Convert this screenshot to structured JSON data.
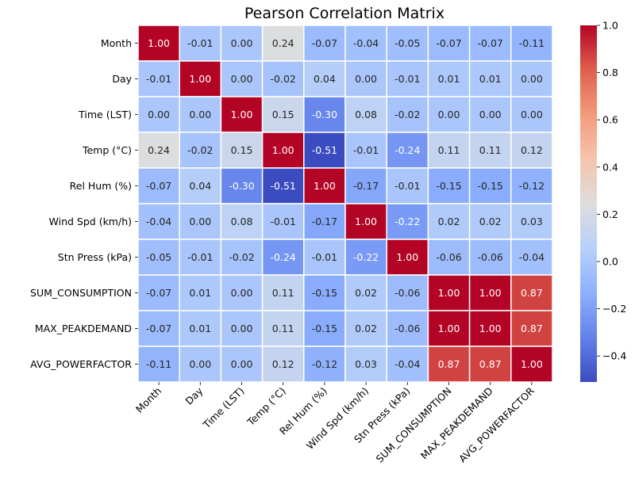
{
  "chart_data": {
    "type": "heatmap",
    "title": "Pearson Correlation Matrix",
    "xlabel": "",
    "ylabel": "",
    "colormap": "coolwarm",
    "annotation_format": "0.00",
    "grid_lines": true,
    "grid_line_color": "#ffffff",
    "x_labels": [
      "Month",
      "Day",
      "Time (LST)",
      "Temp (°C)",
      "Rel Hum (%)",
      "Wind Spd (km/h)",
      "Stn Press (kPa)",
      "SUM_CONSUMPTION",
      "MAX_PEAKDEMAND",
      "AVG_POWERFACTOR"
    ],
    "y_labels": [
      "Month",
      "Day",
      "Time (LST)",
      "Temp (°C)",
      "Rel Hum (%)",
      "Wind Spd (km/h)",
      "Stn Press (kPa)",
      "SUM_CONSUMPTION",
      "MAX_PEAKDEMAND",
      "AVG_POWERFACTOR"
    ],
    "values": [
      [
        1.0,
        -0.01,
        -0.0,
        0.24,
        -0.07,
        -0.04,
        -0.05,
        -0.07,
        -0.07,
        -0.11
      ],
      [
        -0.01,
        1.0,
        0.0,
        -0.02,
        0.04,
        -0.0,
        -0.01,
        0.01,
        0.01,
        0.0
      ],
      [
        -0.0,
        0.0,
        1.0,
        0.15,
        -0.3,
        0.08,
        -0.02,
        0.0,
        -0.0,
        -0.0
      ],
      [
        0.24,
        -0.02,
        0.15,
        1.0,
        -0.51,
        -0.01,
        -0.24,
        0.11,
        0.11,
        0.12
      ],
      [
        -0.07,
        0.04,
        -0.3,
        -0.51,
        1.0,
        -0.17,
        -0.01,
        -0.15,
        -0.15,
        -0.12
      ],
      [
        -0.04,
        -0.0,
        0.08,
        -0.01,
        -0.17,
        1.0,
        -0.22,
        0.02,
        0.02,
        0.03
      ],
      [
        -0.05,
        -0.01,
        -0.02,
        -0.24,
        -0.01,
        -0.22,
        1.0,
        -0.06,
        -0.06,
        -0.04
      ],
      [
        -0.07,
        0.01,
        0.0,
        0.11,
        -0.15,
        0.02,
        -0.06,
        1.0,
        1.0,
        0.87
      ],
      [
        -0.07,
        0.01,
        -0.0,
        0.11,
        -0.15,
        0.02,
        -0.06,
        1.0,
        1.0,
        0.87
      ],
      [
        -0.11,
        0.0,
        -0.0,
        0.12,
        -0.12,
        0.03,
        -0.04,
        0.87,
        0.87,
        1.0
      ]
    ],
    "color_range": [
      -0.51,
      1.0
    ],
    "colorbar": {
      "ticks": [
        1.0,
        0.8,
        0.6,
        0.4,
        0.2,
        0.0,
        -0.2,
        -0.4
      ],
      "tick_labels": [
        "1.0",
        "0.8",
        "0.6",
        "0.4",
        "0.2",
        "0.0",
        "−0.2",
        "−0.4"
      ],
      "position": "right"
    },
    "x_tick_rotation": "45° counter-clockwise",
    "legend": "none"
  }
}
